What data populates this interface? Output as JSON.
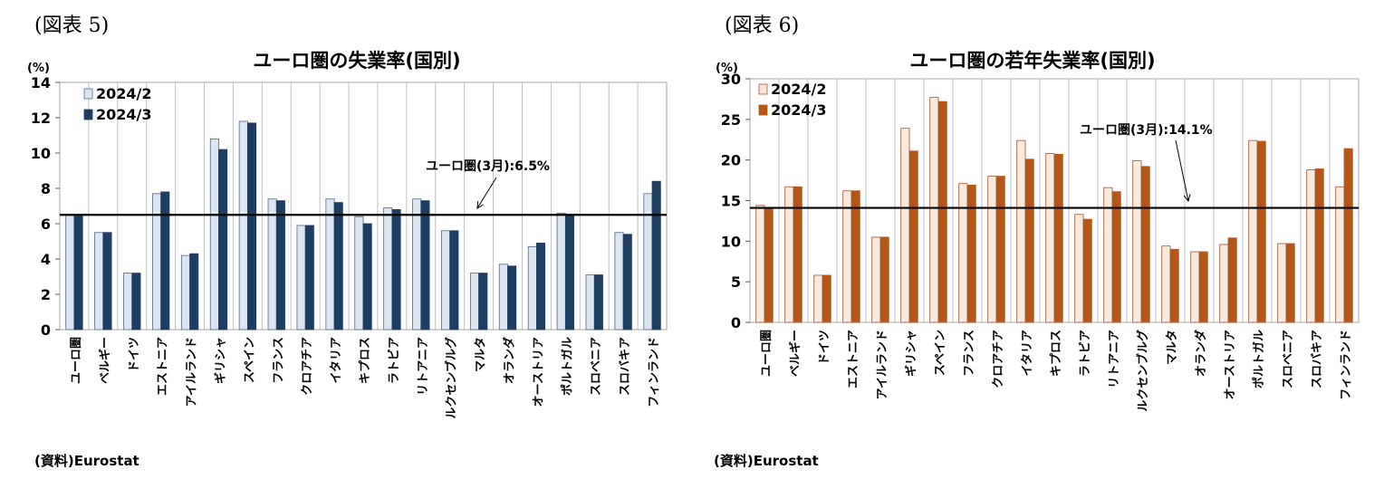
{
  "figures": [
    {
      "label": "(図表 5)",
      "source": "(資料)Eurostat",
      "colors": {
        "feb": "#dce6f2",
        "mar": "#1f3d62",
        "feb_stroke": "#4a6a8c"
      }
    },
    {
      "label": "(図表 6)",
      "source": "(資料)Eurostat",
      "colors": {
        "feb": "#fde9d9",
        "mar": "#b5561a",
        "feb_stroke": "#a0522d"
      }
    }
  ],
  "chart_data": [
    {
      "type": "bar",
      "title": "ユーロ圏の失業率(国別)",
      "ylabel": "(%)",
      "ylim": [
        0,
        14
      ],
      "yticks": [
        "0",
        "2",
        "4",
        "6",
        "8",
        "10",
        "12",
        "14"
      ],
      "grid": "vertical",
      "legend_position": "top-left",
      "categories": [
        "ユーロ圏",
        "ベルギー",
        "ドイツ",
        "エストニア",
        "アイルランド",
        "ギリシャ",
        "スペイン",
        "フランス",
        "クロアチア",
        "イタリア",
        "キプロス",
        "ラトビア",
        "リトアニア",
        "ルクセンブルグ",
        "マルタ",
        "オランダ",
        "オーストリア",
        "ポルトガル",
        "スロベニア",
        "スロバキア",
        "フィンランド"
      ],
      "series": [
        {
          "name": "2024/2",
          "values": [
            6.5,
            5.5,
            3.2,
            7.7,
            4.2,
            10.8,
            11.8,
            7.4,
            5.9,
            7.4,
            6.4,
            6.9,
            7.4,
            5.6,
            3.2,
            3.7,
            4.7,
            6.6,
            3.1,
            5.5,
            7.7
          ]
        },
        {
          "name": "2024/3",
          "values": [
            6.5,
            5.5,
            3.2,
            7.8,
            4.3,
            10.2,
            11.7,
            7.3,
            5.9,
            7.2,
            6.0,
            6.8,
            7.3,
            5.6,
            3.2,
            3.6,
            4.9,
            6.5,
            3.1,
            5.4,
            8.4
          ]
        }
      ],
      "reference_line": {
        "value": 6.5,
        "label": "ユーロ圏(3月):6.5%"
      }
    },
    {
      "type": "bar",
      "title": "ユーロ圏の若年失業率(国別)",
      "ylabel": "(%)",
      "ylim": [
        0,
        30
      ],
      "yticks": [
        "0",
        "5",
        "10",
        "15",
        "20",
        "25",
        "30"
      ],
      "grid": "vertical",
      "legend_position": "top-left",
      "categories": [
        "ユーロ圏",
        "ベルギー",
        "ドイツ",
        "エストニア",
        "アイルランド",
        "ギリシャ",
        "スペイン",
        "フランス",
        "クロアチア",
        "イタリア",
        "キプロス",
        "ラトビア",
        "リトアニア",
        "ルクセンブルグ",
        "マルタ",
        "オランダ",
        "オーストリア",
        "ポルトガル",
        "スロベニア",
        "スロバキア",
        "フィンランド"
      ],
      "series": [
        {
          "name": "2024/2",
          "values": [
            14.4,
            16.7,
            5.8,
            16.2,
            10.5,
            23.9,
            27.7,
            17.1,
            18.0,
            22.4,
            20.8,
            13.3,
            16.6,
            19.9,
            9.4,
            8.7,
            9.6,
            22.4,
            9.7,
            18.8,
            16.7
          ]
        },
        {
          "name": "2024/3",
          "values": [
            14.1,
            16.7,
            5.8,
            16.2,
            10.5,
            21.1,
            27.2,
            16.9,
            18.0,
            20.1,
            20.7,
            12.7,
            16.1,
            19.2,
            9.0,
            8.7,
            10.4,
            22.3,
            9.7,
            18.9,
            21.4
          ]
        }
      ],
      "reference_line": {
        "value": 14.1,
        "label": "ユーロ圏(3月):14.1%"
      }
    }
  ]
}
